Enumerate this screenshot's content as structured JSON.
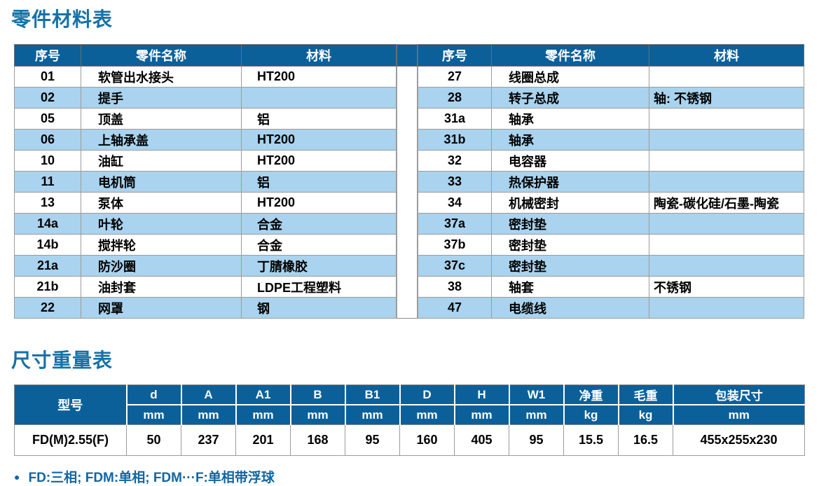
{
  "colors": {
    "header_bg": "#0b609a",
    "row_alt_bg": "#a9d3ee",
    "title_color": "#1571a7",
    "footnote_color": "#1166a3",
    "border_color": "#9c9c9c"
  },
  "parts_section": {
    "title": "零件材料表",
    "columns": [
      "序号",
      "零件名称",
      "材料"
    ],
    "left_rows": [
      {
        "no": "01",
        "name": "软管出水接头",
        "material": "HT200"
      },
      {
        "no": "02",
        "name": "提手",
        "material": ""
      },
      {
        "no": "05",
        "name": "顶盖",
        "material": "铝"
      },
      {
        "no": "06",
        "name": "上轴承盖",
        "material": "HT200"
      },
      {
        "no": "10",
        "name": "油缸",
        "material": "HT200"
      },
      {
        "no": "11",
        "name": "电机筒",
        "material": "铝"
      },
      {
        "no": "13",
        "name": "泵体",
        "material": "HT200"
      },
      {
        "no": "14a",
        "name": "叶轮",
        "material": "合金"
      },
      {
        "no": "14b",
        "name": "搅拌轮",
        "material": "合金"
      },
      {
        "no": "21a",
        "name": "防沙圈",
        "material": "丁腈橡胶"
      },
      {
        "no": "21b",
        "name": "油封套",
        "material": "LDPE工程塑料"
      },
      {
        "no": "22",
        "name": "网罩",
        "material": "钢"
      }
    ],
    "right_rows": [
      {
        "no": "27",
        "name": "线圈总成",
        "material": ""
      },
      {
        "no": "28",
        "name": "转子总成",
        "material": "轴: 不锈钢"
      },
      {
        "no": "31a",
        "name": "轴承",
        "material": ""
      },
      {
        "no": "31b",
        "name": "轴承",
        "material": ""
      },
      {
        "no": "32",
        "name": "电容器",
        "material": ""
      },
      {
        "no": "33",
        "name": "热保护器",
        "material": ""
      },
      {
        "no": "34",
        "name": "机械密封",
        "material": "陶瓷-碳化硅/石墨-陶瓷"
      },
      {
        "no": "37a",
        "name": "密封垫",
        "material": ""
      },
      {
        "no": "37b",
        "name": "密封垫",
        "material": ""
      },
      {
        "no": "37c",
        "name": "密封垫",
        "material": ""
      },
      {
        "no": "38",
        "name": "轴套",
        "material": "不锈钢"
      },
      {
        "no": "47",
        "name": "电缆线",
        "material": ""
      }
    ]
  },
  "dimensions_section": {
    "title": "尺寸重量表",
    "model_header": "型号",
    "columns": [
      {
        "label": "d",
        "unit": "mm"
      },
      {
        "label": "A",
        "unit": "mm"
      },
      {
        "label": "A1",
        "unit": "mm"
      },
      {
        "label": "B",
        "unit": "mm"
      },
      {
        "label": "B1",
        "unit": "mm"
      },
      {
        "label": "D",
        "unit": "mm"
      },
      {
        "label": "H",
        "unit": "mm"
      },
      {
        "label": "W1",
        "unit": "mm"
      },
      {
        "label": "净重",
        "unit": "kg"
      },
      {
        "label": "毛重",
        "unit": "kg"
      },
      {
        "label": "包装尺寸",
        "unit": "mm"
      }
    ],
    "rows": [
      {
        "model": "FD(M)2.55(F)",
        "values": [
          "50",
          "237",
          "201",
          "168",
          "95",
          "160",
          "405",
          "95",
          "15.5",
          "16.5",
          "455x255x230"
        ]
      }
    ]
  },
  "footnote": {
    "bullet": "●",
    "text": "FD:三相; FDM:单相; FDM···F:单相带浮球"
  }
}
